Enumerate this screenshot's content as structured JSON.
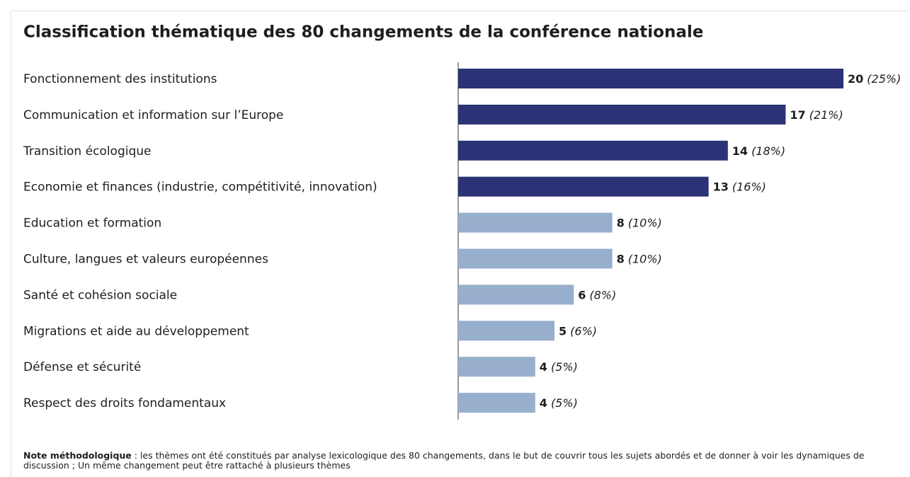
{
  "chart_data": {
    "type": "barh",
    "title": "Classification thématique des 80 changements de la conférence nationale",
    "categories": [
      "Fonctionnement des institutions",
      "Communication et information sur l’Europe",
      "Transition écologique",
      "Economie et finances (industrie, compétitivité, innovation)",
      "Education et formation",
      "Culture, langues et valeurs européennes",
      "Santé et cohésion sociale",
      "Migrations et aide au développement",
      "Défense et sécurité",
      "Respect des droits fondamentaux"
    ],
    "values": [
      20,
      17,
      14,
      13,
      8,
      8,
      6,
      5,
      4,
      4
    ],
    "share_labels": [
      "(25%)",
      "(21%)",
      "(18%)",
      "(16%)",
      "(10%)",
      "(10%)",
      "(8%)",
      "(6%)",
      "(5%)",
      "(5%)"
    ],
    "colors": [
      "#2b3275",
      "#2b3275",
      "#2b3275",
      "#2b3275",
      "#97afcd",
      "#97afcd",
      "#97afcd",
      "#97afcd",
      "#97afcd",
      "#97afcd"
    ],
    "xlim": [
      0,
      20
    ],
    "note_label": "Note méthodologique",
    "note_text": " : les thèmes ont été constitués par analyse lexicologique des  80 changements, dans le but de couvrir tous les sujets abordés et de donner à voir les dynamiques de discussion ; Un même changement peut être rattaché à plusieurs thèmes"
  }
}
